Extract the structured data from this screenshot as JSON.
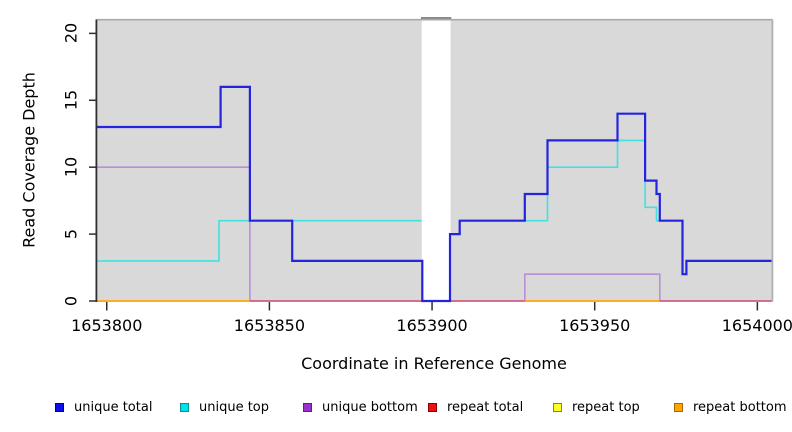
{
  "chart_data": {
    "type": "line",
    "subtype": "step-coverage",
    "title": "",
    "xlabel": "Coordinate in Reference Genome",
    "ylabel": "Read Coverage Depth",
    "xlim": [
      1653797,
      1654004.5
    ],
    "ylim": [
      0,
      21
    ],
    "x_ticks": [
      1653800,
      1653850,
      1653900,
      1653950,
      1654000
    ],
    "x_tick_labels": [
      "1653800",
      "1653850",
      "1653900",
      "1653950",
      "1654000"
    ],
    "y_ticks": [
      0,
      5,
      10,
      15,
      20
    ],
    "y_tick_labels": [
      "0",
      "5",
      "10",
      "15",
      "20"
    ],
    "plot_bg": "#d9d9d9",
    "grid": "off",
    "legend_position": "bottom",
    "masked_region": {
      "from": 1653896.8,
      "to": 1653905.7,
      "fill": "#ffffff",
      "cap_color": "#8a8a8a"
    },
    "note": "steps arrays are [coordinate, value-from-that-coordinate]; repeat series lie flat at 0 and are visible only as the colored baseline segments",
    "series": [
      {
        "name": "unique total",
        "color": "#2424e0",
        "width": 2.2,
        "draw": true,
        "steps": [
          [
            1653797,
            13
          ],
          [
            1653835,
            16
          ],
          [
            1653844,
            6
          ],
          [
            1653857,
            3
          ],
          [
            1653897,
            0
          ],
          [
            1653905.5,
            5
          ],
          [
            1653908.5,
            6
          ],
          [
            1653928.5,
            8
          ],
          [
            1653935.5,
            12
          ],
          [
            1653957,
            14
          ],
          [
            1653965.5,
            9
          ],
          [
            1653969,
            8
          ],
          [
            1653970,
            6
          ],
          [
            1653977,
            2
          ],
          [
            1653978.2,
            3
          ],
          [
            1654004.5,
            3
          ]
        ]
      },
      {
        "name": "unique top",
        "color": "#43e0e0",
        "width": 1.6,
        "draw": true,
        "steps": [
          [
            1653797,
            3
          ],
          [
            1653834.5,
            6
          ],
          [
            1653897,
            0
          ],
          [
            1653905.5,
            5
          ],
          [
            1653908.5,
            6
          ],
          [
            1653935.5,
            10
          ],
          [
            1653957,
            12
          ],
          [
            1653965.5,
            7
          ],
          [
            1653969,
            6
          ],
          [
            1653977,
            2
          ],
          [
            1653978.2,
            3
          ],
          [
            1654004.5,
            3
          ]
        ]
      },
      {
        "name": "unique bottom",
        "color": "#b98fd6",
        "width": 1.6,
        "draw": true,
        "steps": [
          [
            1653797,
            10
          ],
          [
            1653844,
            0
          ],
          [
            1653928.5,
            2
          ],
          [
            1653970,
            0
          ],
          [
            1654004.5,
            0
          ]
        ]
      },
      {
        "name": "repeat total",
        "color": "#d5537c",
        "width": 1.6,
        "draw": false,
        "steps": [
          [
            1653797,
            0
          ],
          [
            1654004.5,
            0
          ]
        ]
      },
      {
        "name": "repeat top",
        "color": "#ffff00",
        "width": 1.6,
        "draw": false,
        "steps": [
          [
            1653797,
            0
          ],
          [
            1654004.5,
            0
          ]
        ]
      },
      {
        "name": "repeat bottom",
        "color": "#ffa500",
        "width": 1.8,
        "draw": false,
        "steps": [
          [
            1653797,
            0
          ],
          [
            1654004.5,
            0
          ]
        ]
      }
    ],
    "baseline_visible_segments": [
      {
        "from": 1653797,
        "to": 1653844,
        "color": "#ffa500",
        "width": 1.8
      },
      {
        "from": 1653844,
        "to": 1653897,
        "color": "#d5537c",
        "width": 1.6
      },
      {
        "from": 1653905.5,
        "to": 1653928.5,
        "color": "#d5537c",
        "width": 1.6
      },
      {
        "from": 1653928.5,
        "to": 1653970,
        "color": "#ffa500",
        "width": 1.8
      },
      {
        "from": 1653970,
        "to": 1654004.5,
        "color": "#d5537c",
        "width": 1.6
      }
    ]
  },
  "legend": {
    "items": [
      {
        "label": "unique total",
        "fill": "#0f0fe8",
        "border": "#0000a8"
      },
      {
        "label": "unique top",
        "fill": "#00e0e8",
        "border": "#009099"
      },
      {
        "label": "unique bottom",
        "fill": "#9932cc",
        "border": "#5e1e87"
      },
      {
        "label": "repeat total",
        "fill": "#ee1111",
        "border": "#8b0000"
      },
      {
        "label": "repeat top",
        "fill": "#ffff22",
        "border": "#8b8b00"
      },
      {
        "label": "repeat bottom",
        "fill": "#ffa500",
        "border": "#a86a00"
      }
    ]
  }
}
